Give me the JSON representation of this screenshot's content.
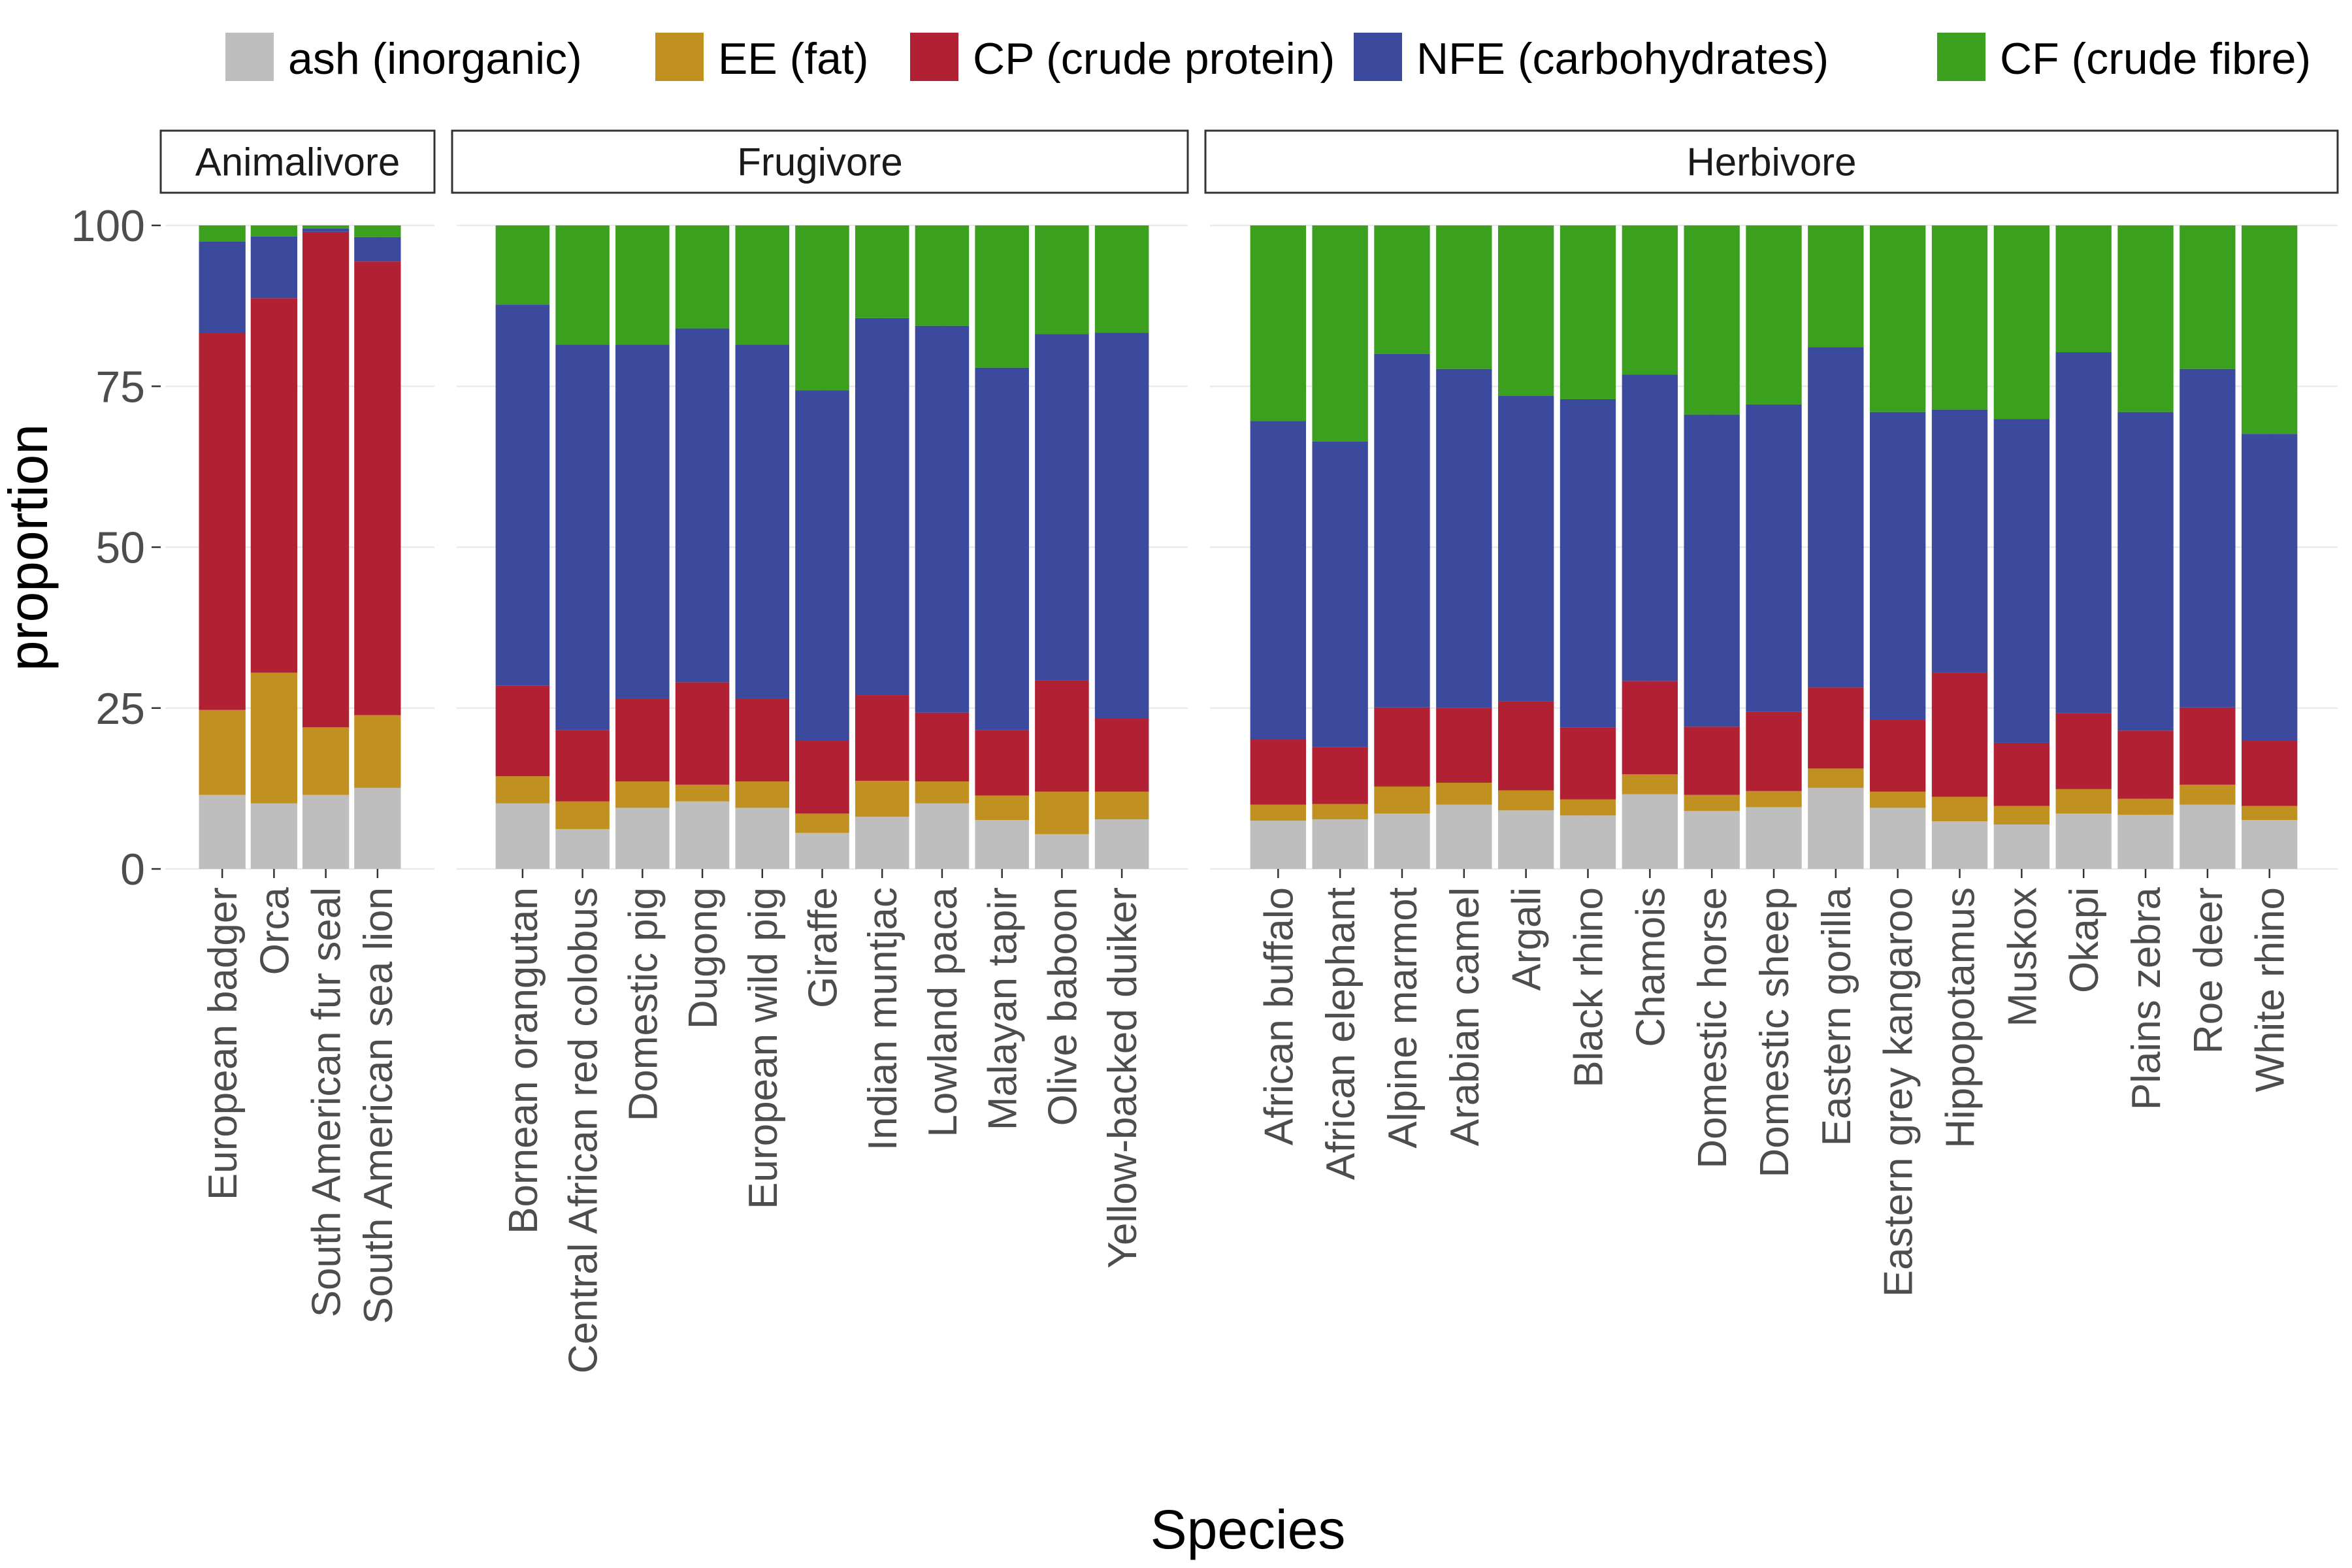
{
  "chart_data": {
    "type": "bar",
    "stacked": true,
    "xlabel": "Species",
    "ylabel": "proportion",
    "ylim": [
      0,
      100
    ],
    "yticks": [
      0,
      25,
      50,
      75,
      100
    ],
    "legend_position": "top",
    "grid": true,
    "colors": {
      "ash (inorganic)": "#bebebe",
      "EE (fat)": "#c09020",
      "CP (crude protein)": "#b22033",
      "NFE (carbohydrates)": "#3b4a9c",
      "CF (crude fibre)": "#3aa01e"
    },
    "series_names": [
      "ash (inorganic)",
      "EE (fat)",
      "CP (crude protein)",
      "NFE (carbohydrates)",
      "CF (crude fibre)"
    ],
    "panels": [
      {
        "label": "Animalivore",
        "categories": [
          "European badger",
          "Orca",
          "South American fur seal",
          "South American sea lion"
        ],
        "series": [
          {
            "name": "ash (inorganic)",
            "values": [
              11.5,
              10.2,
              11.5,
              12.6
            ]
          },
          {
            "name": "EE (fat)",
            "values": [
              13.2,
              20.3,
              10.5,
              11.3
            ]
          },
          {
            "name": "CP (crude protein)",
            "values": [
              58.6,
              58.2,
              77.0,
              70.5
            ]
          },
          {
            "name": "NFE (carbohydrates)",
            "values": [
              14.2,
              9.6,
              0.5,
              3.8
            ]
          },
          {
            "name": "CF (crude fibre)",
            "values": [
              2.5,
              1.7,
              0.5,
              1.8
            ]
          }
        ]
      },
      {
        "label": "Frugivore",
        "categories": [
          "Bornean orangutan",
          "Central African red colobus",
          "Domestic pig",
          "Dugong",
          "European wild pig",
          "Giraffe",
          "Indian muntjac",
          "Lowland paca",
          "Malayan tapir",
          "Olive baboon",
          "Yellow-backed duiker"
        ],
        "series": [
          {
            "name": "ash (inorganic)",
            "values": [
              10.2,
              6.2,
              9.5,
              10.5,
              9.5,
              5.6,
              8.1,
              10.2,
              7.6,
              5.4,
              7.7
            ]
          },
          {
            "name": "EE (fat)",
            "values": [
              4.2,
              4.3,
              4.1,
              2.6,
              4.1,
              3.0,
              5.6,
              3.4,
              3.8,
              6.6,
              4.3
            ]
          },
          {
            "name": "CP (crude protein)",
            "values": [
              14.1,
              11.1,
              12.9,
              15.9,
              12.9,
              11.4,
              13.3,
              10.7,
              10.2,
              17.3,
              11.4
            ]
          },
          {
            "name": "NFE (carbohydrates)",
            "values": [
              59.2,
              59.9,
              55.0,
              55.0,
              55.0,
              54.4,
              58.6,
              60.1,
              56.3,
              53.8,
              59.9
            ]
          },
          {
            "name": "CF (crude fibre)",
            "values": [
              12.3,
              18.5,
              18.5,
              16.0,
              18.5,
              25.6,
              14.4,
              15.6,
              22.1,
              16.9,
              16.7
            ]
          }
        ]
      },
      {
        "label": "Herbivore",
        "categories": [
          "African buffalo",
          "African elephant",
          "Alpine marmot",
          "Arabian camel",
          "Argali",
          "Black rhino",
          "Chamois",
          "Domestic horse",
          "Domestic sheep",
          "Eastern gorilla",
          "Eastern grey kangaroo",
          "Hippopotamus",
          "Muskox",
          "Okapi",
          "Plains zebra",
          "Roe deer",
          "White rhino"
        ],
        "series": [
          {
            "name": "ash (inorganic)",
            "values": [
              7.5,
              7.7,
              8.6,
              10.0,
              9.1,
              8.3,
              11.6,
              9.0,
              9.6,
              12.6,
              9.5,
              7.4,
              6.9,
              8.6,
              8.4,
              10.0,
              7.6
            ]
          },
          {
            "name": "EE (fat)",
            "values": [
              2.5,
              2.4,
              4.2,
              3.4,
              3.1,
              2.5,
              3.1,
              2.5,
              2.5,
              3.0,
              2.5,
              3.8,
              2.9,
              3.8,
              2.5,
              3.1,
              2.2
            ]
          },
          {
            "name": "CP (crude protein)",
            "values": [
              10.1,
              8.8,
              12.3,
              11.6,
              13.8,
              11.2,
              14.5,
              10.6,
              12.3,
              12.6,
              11.2,
              19.3,
              9.8,
              11.8,
              10.6,
              12.0,
              10.1
            ]
          },
          {
            "name": "NFE (carbohydrates)",
            "values": [
              49.5,
              47.5,
              54.9,
              52.7,
              47.5,
              51.0,
              47.6,
              48.5,
              47.8,
              52.9,
              47.8,
              40.9,
              50.3,
              56.1,
              49.5,
              52.6,
              47.7
            ]
          },
          {
            "name": "CF (crude fibre)",
            "values": [
              30.4,
              33.6,
              20.0,
              22.3,
              26.5,
              27.0,
              23.2,
              29.4,
              27.8,
              18.9,
              29.0,
              28.6,
              30.1,
              19.7,
              29.0,
              22.3,
              32.4
            ]
          }
        ]
      }
    ]
  }
}
